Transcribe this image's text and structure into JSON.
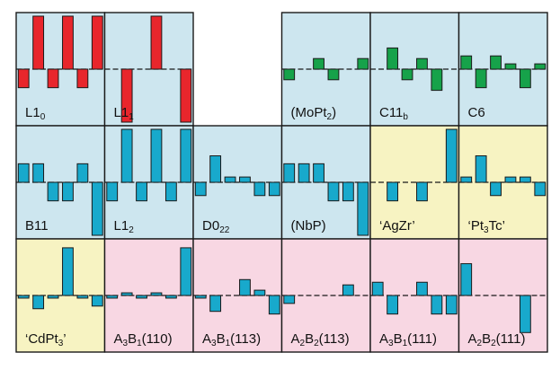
{
  "colors": {
    "blue_bg": "#cde6ef",
    "yellow_bg": "#f7f3c2",
    "pink_bg": "#f8d7e3",
    "red_bar": "#e8262c",
    "green_bar": "#16a24a",
    "cyan_bar": "#18a9cc",
    "frame": "#1a1a1a"
  },
  "chart_data": {
    "type": "bar",
    "description_scale": "bar heights in units of the panel half-height (zero line at centre)",
    "panels": [
      {
        "key": "L1_0",
        "row": 0,
        "col": 0,
        "label": "L1",
        "sub": "0",
        "suffix": "",
        "bg": "blue",
        "bar_color": "red",
        "values": [
          -0.35,
          1.0,
          -0.35,
          1.0,
          -0.35,
          1.0
        ]
      },
      {
        "key": "L1_1",
        "row": 0,
        "col": 1,
        "label": "L1",
        "sub": "1",
        "suffix": "",
        "bg": "blue",
        "bar_color": "red",
        "values": [
          0.0,
          -1.0,
          0.0,
          1.0,
          0.0,
          -1.0
        ]
      },
      {
        "key": "MoPt2",
        "row": 0,
        "col": 3,
        "label": "(MoPt",
        "sub": "2",
        "suffix": ")",
        "bg": "blue",
        "bar_color": "green",
        "values": [
          -0.2,
          0.0,
          0.2,
          -0.2,
          0.0,
          0.2
        ]
      },
      {
        "key": "C11b",
        "row": 0,
        "col": 4,
        "label": "C11",
        "sub": "b",
        "suffix": "",
        "bg": "blue",
        "bar_color": "green",
        "values": [
          0.0,
          0.4,
          -0.2,
          0.2,
          -0.4,
          0.0
        ]
      },
      {
        "key": "C6",
        "row": 0,
        "col": 5,
        "label": "C6",
        "sub": "",
        "suffix": "",
        "bg": "blue",
        "bar_color": "green",
        "values": [
          0.25,
          -0.35,
          0.25,
          0.1,
          -0.35,
          0.1
        ]
      },
      {
        "key": "B11",
        "row": 1,
        "col": 0,
        "label": "B11",
        "sub": "",
        "suffix": "",
        "bg": "blue",
        "bar_color": "cyan",
        "values": [
          0.35,
          0.35,
          -0.35,
          -0.35,
          0.35,
          -1.0
        ]
      },
      {
        "key": "L1_2",
        "row": 1,
        "col": 1,
        "label": "L1",
        "sub": "2",
        "suffix": "",
        "bg": "blue",
        "bar_color": "cyan",
        "values": [
          -0.35,
          1.0,
          -0.35,
          1.0,
          -0.35,
          1.0
        ]
      },
      {
        "key": "D0_22",
        "row": 1,
        "col": 2,
        "label": "D0",
        "sub": "22",
        "suffix": "",
        "bg": "blue",
        "bar_color": "cyan",
        "values": [
          -0.25,
          0.5,
          0.1,
          0.1,
          -0.25,
          -0.25
        ]
      },
      {
        "key": "NbP",
        "row": 1,
        "col": 3,
        "label": "(NbP)",
        "sub": "",
        "suffix": "",
        "bg": "blue",
        "bar_color": "cyan",
        "values": [
          0.35,
          0.35,
          0.35,
          -0.35,
          -0.35,
          -1.0
        ]
      },
      {
        "key": "AgZr",
        "row": 1,
        "col": 4,
        "label": "‘AgZr’",
        "sub": "",
        "suffix": "",
        "bg": "yellow",
        "bar_color": "cyan",
        "values": [
          0.0,
          -0.35,
          0.0,
          -0.35,
          0.0,
          1.0
        ]
      },
      {
        "key": "Pt3Tc",
        "row": 1,
        "col": 5,
        "label": "‘Pt",
        "sub": "3",
        "suffix": "Tc’",
        "bg": "yellow",
        "bar_color": "cyan",
        "values": [
          0.1,
          0.5,
          -0.25,
          0.1,
          0.1,
          -0.25
        ]
      },
      {
        "key": "CdPt3",
        "row": 2,
        "col": 0,
        "label": "‘CdPt",
        "sub": "3",
        "suffix": "’",
        "bg": "yellow",
        "bar_color": "cyan",
        "values": [
          -0.05,
          -0.25,
          -0.05,
          0.9,
          -0.05,
          -0.2
        ]
      },
      {
        "key": "A3B1_110",
        "row": 2,
        "col": 1,
        "label": "A",
        "sub": "3",
        "suffix": "B",
        "sub2": "1",
        "suffix2": "(110)",
        "bg": "pink",
        "bar_color": "cyan",
        "values": [
          -0.05,
          0.05,
          -0.05,
          0.05,
          -0.05,
          0.9
        ]
      },
      {
        "key": "A3B1_113",
        "row": 2,
        "col": 2,
        "label": "A",
        "sub": "3",
        "suffix": "B",
        "sub2": "1",
        "suffix2": "(113)",
        "bg": "pink",
        "bar_color": "cyan",
        "values": [
          -0.05,
          -0.3,
          0.0,
          0.3,
          0.1,
          -0.35
        ]
      },
      {
        "key": "A2B2_113",
        "row": 2,
        "col": 3,
        "label": "A",
        "sub": "2",
        "suffix": "B",
        "sub2": "2",
        "suffix2": "(113)",
        "bg": "pink",
        "bar_color": "cyan",
        "values": [
          -0.15,
          0.0,
          0.0,
          0.0,
          0.2,
          0.0
        ]
      },
      {
        "key": "A3B1_111",
        "row": 2,
        "col": 4,
        "label": "A",
        "sub": "3",
        "suffix": "B",
        "sub2": "1",
        "suffix2": "(111)",
        "bg": "pink",
        "bar_color": "cyan",
        "values": [
          0.25,
          -0.35,
          0.0,
          0.25,
          -0.35,
          -0.35
        ]
      },
      {
        "key": "A2B2_111",
        "row": 2,
        "col": 5,
        "label": "A",
        "sub": "2",
        "suffix": "B",
        "sub2": "2",
        "suffix2": "(111)",
        "bg": "pink",
        "bar_color": "cyan",
        "values": [
          0.6,
          0.0,
          0.0,
          0.0,
          -0.7,
          0.0
        ]
      }
    ]
  }
}
